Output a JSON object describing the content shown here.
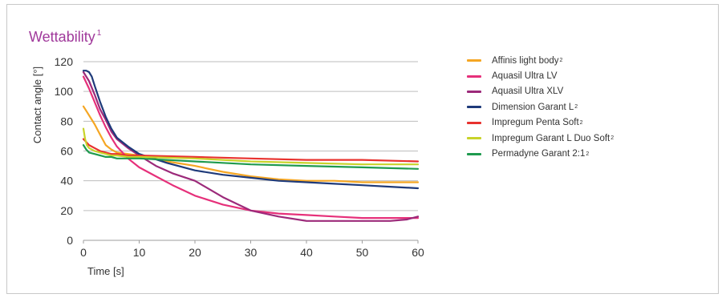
{
  "chart_data": {
    "type": "line",
    "title": "Wettability",
    "title_sup": "1",
    "xlabel": "Time [s]",
    "ylabel": "Contact angle [°]",
    "xlim": [
      0,
      60
    ],
    "ylim": [
      0,
      120
    ],
    "xticks": [
      0,
      10,
      20,
      30,
      40,
      50,
      60
    ],
    "yticks": [
      0,
      20,
      40,
      60,
      80,
      100,
      120
    ],
    "grid": "horizontal",
    "legend_position": "right",
    "series": [
      {
        "name": "Affinis light body",
        "sup": "2",
        "color": "#f5a623",
        "x": [
          0,
          0.5,
          1,
          2,
          3,
          4,
          5,
          6,
          8,
          10,
          15,
          20,
          25,
          30,
          35,
          40,
          45,
          50,
          55,
          60
        ],
        "y": [
          90,
          87,
          84,
          78,
          71,
          64,
          61,
          59,
          58,
          57,
          53,
          50,
          46,
          43,
          41,
          40,
          40,
          39,
          39,
          39
        ]
      },
      {
        "name": "Aquasil Ultra LV",
        "sup": "",
        "color": "#e6307a",
        "x": [
          0,
          1,
          2,
          3,
          4,
          5,
          6,
          8,
          10,
          13,
          16,
          20,
          25,
          30,
          35,
          40,
          45,
          50,
          55,
          60
        ],
        "y": [
          110,
          102,
          93,
          84,
          76,
          69,
          63,
          55,
          49,
          43,
          37,
          30,
          24,
          20,
          18,
          17,
          16,
          15,
          15,
          15
        ]
      },
      {
        "name": "Aquasil Ultra XLV",
        "sup": "",
        "color": "#9c2a7a",
        "x": [
          0,
          1,
          2,
          3,
          4,
          5,
          6,
          8,
          10,
          13,
          16,
          20,
          25,
          30,
          35,
          40,
          45,
          50,
          55,
          58,
          60
        ],
        "y": [
          113,
          107,
          98,
          88,
          81,
          73,
          68,
          62,
          57,
          50,
          45,
          40,
          29,
          20,
          16,
          13,
          13,
          13,
          13,
          14,
          16
        ]
      },
      {
        "name": "Dimension Garant L",
        "sup": "2",
        "color": "#1e3a7a",
        "x": [
          0,
          0.5,
          1,
          1.5,
          2,
          3,
          4,
          5,
          6,
          8,
          10,
          15,
          20,
          25,
          30,
          35,
          40,
          45,
          50,
          55,
          60
        ],
        "y": [
          114,
          114,
          113,
          110,
          104,
          93,
          83,
          75,
          69,
          63,
          58,
          52,
          47,
          44,
          42,
          40,
          39,
          38,
          37,
          36,
          35
        ]
      },
      {
        "name": "Impregum Penta Soft",
        "sup": "2",
        "color": "#e8322e",
        "x": [
          0,
          0.5,
          1,
          2,
          3,
          4,
          5,
          6,
          8,
          10,
          20,
          30,
          40,
          50,
          60
        ],
        "y": [
          68,
          66,
          64,
          62,
          60,
          59,
          58,
          58,
          57,
          57,
          56,
          55,
          54,
          54,
          53
        ]
      },
      {
        "name": "Impregum Garant L Duo Soft",
        "sup": "2",
        "color": "#c8d32a",
        "x": [
          0,
          0.3,
          0.6,
          1,
          2,
          3,
          4,
          5,
          6,
          8,
          10,
          20,
          30,
          40,
          50,
          60
        ],
        "y": [
          75,
          68,
          64,
          62,
          60,
          59,
          58,
          57,
          57,
          56,
          56,
          55,
          53,
          52,
          51,
          51
        ]
      },
      {
        "name": "Permadyne Garant 2:1",
        "sup": "2",
        "color": "#1e9a4e",
        "x": [
          0,
          0.5,
          1,
          2,
          3,
          4,
          5,
          6,
          8,
          10,
          20,
          30,
          40,
          50,
          60
        ],
        "y": [
          64,
          61,
          59,
          58,
          57,
          56,
          56,
          55,
          55,
          55,
          53,
          51,
          50,
          49,
          48
        ]
      }
    ]
  }
}
